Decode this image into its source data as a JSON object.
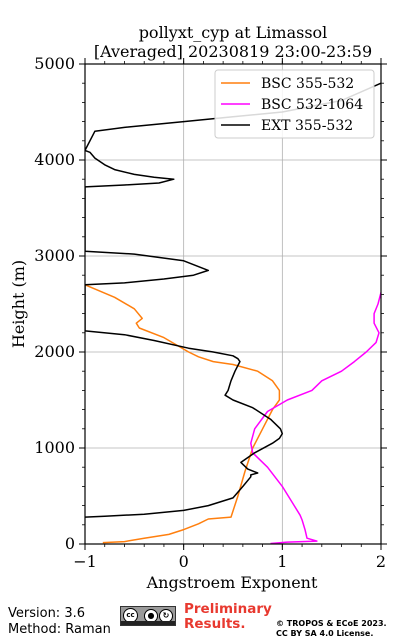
{
  "footer": {
    "version": "Version: 3.6",
    "method": "Method: Raman",
    "prelim_line1": "Preliminary",
    "prelim_line2": "Results.",
    "copyright_line1": "© TROPOS & ECoE 2023.",
    "copyright_line2": "CC BY SA 4.0 License.",
    "badge_text": "cc"
  },
  "chart_data": {
    "type": "line",
    "title": [
      "pollyxt_cyp at Limassol",
      "[Averaged] 20230819 23:00-23:59"
    ],
    "xlabel": "Angstroem Exponent",
    "ylabel": "Height (m)",
    "xlim": [
      -1,
      2
    ],
    "ylim": [
      0,
      5000
    ],
    "xticks": [
      -1,
      0,
      1,
      2
    ],
    "xtick_labels": [
      "−1",
      "0",
      "1",
      "2"
    ],
    "yticks": [
      0,
      1000,
      2000,
      3000,
      4000,
      5000
    ],
    "ytick_labels": [
      "0",
      "1000",
      "2000",
      "3000",
      "4000",
      "5000"
    ],
    "grid": true,
    "legend": "top-right",
    "series": [
      {
        "name": "BSC 355-532",
        "color": "#ff7f0e",
        "x": [
          -0.82,
          -0.6,
          -0.4,
          -0.15,
          0.0,
          0.15,
          0.25,
          0.48,
          0.55,
          0.62,
          0.7,
          0.8,
          0.9,
          0.97,
          0.97,
          0.9,
          0.75,
          0.5,
          0.3,
          0.15,
          0.05,
          -0.2,
          -0.45,
          -0.48,
          -0.42,
          -0.5,
          -0.7,
          -1.0
        ],
        "y": [
          15,
          25,
          60,
          100,
          150,
          210,
          260,
          280,
          500,
          750,
          1000,
          1200,
          1400,
          1500,
          1600,
          1700,
          1800,
          1870,
          1900,
          1950,
          2000,
          2150,
          2250,
          2300,
          2350,
          2450,
          2570,
          2700
        ]
      },
      {
        "name": "BSC 532-1064",
        "color": "#ff00ff",
        "x": [
          0.88,
          1.05,
          1.35,
          1.25,
          1.23,
          1.2,
          1.18,
          1.12,
          1.0,
          0.85,
          0.7,
          0.68,
          0.72,
          0.85,
          1.05,
          1.3,
          1.4,
          1.6,
          1.73,
          1.85,
          1.95,
          1.98,
          1.93,
          1.93,
          1.97,
          2.0
        ],
        "y": [
          5,
          20,
          30,
          60,
          150,
          250,
          300,
          400,
          600,
          800,
          950,
          1050,
          1200,
          1380,
          1500,
          1600,
          1700,
          1800,
          1900,
          2000,
          2100,
          2200,
          2300,
          2400,
          2500,
          2620
        ]
      },
      {
        "name": "EXT 355-532",
        "color": "#000000",
        "x": [
          -1.0,
          -0.8,
          -0.4,
          0.0,
          0.25,
          0.5,
          0.6,
          0.68,
          0.68,
          0.75,
          0.65,
          0.58,
          0.72,
          0.9,
          0.97,
          1.0,
          0.98,
          0.88,
          0.7,
          0.5,
          0.42,
          0.45,
          0.48,
          0.52,
          0.57,
          0.55,
          0.5,
          0.3,
          0.05,
          -0.3,
          -0.6,
          -1.0,
          -1.0,
          -0.6,
          -0.2,
          0.1,
          0.25,
          0.0,
          -0.5,
          -1.0,
          -1.0,
          -0.6,
          -0.25,
          -0.1,
          -0.3,
          -0.5,
          -0.7,
          -0.8,
          -0.9,
          -0.95,
          -1.0,
          -0.9,
          -0.6,
          -0.3,
          0.0,
          0.5,
          1.0,
          1.6,
          2.0
        ],
        "y": [
          280,
          290,
          310,
          350,
          400,
          480,
          600,
          700,
          720,
          740,
          780,
          850,
          950,
          1050,
          1100,
          1150,
          1200,
          1300,
          1420,
          1500,
          1550,
          1600,
          1700,
          1800,
          1900,
          1930,
          1960,
          2000,
          2040,
          2120,
          2180,
          2220,
          2700,
          2720,
          2760,
          2800,
          2850,
          2950,
          3020,
          3050,
          3720,
          3740,
          3760,
          3800,
          3820,
          3850,
          3900,
          3950,
          4020,
          4080,
          4100,
          4300,
          4340,
          4370,
          4400,
          4450,
          4500,
          4620,
          4800
        ]
      }
    ]
  }
}
